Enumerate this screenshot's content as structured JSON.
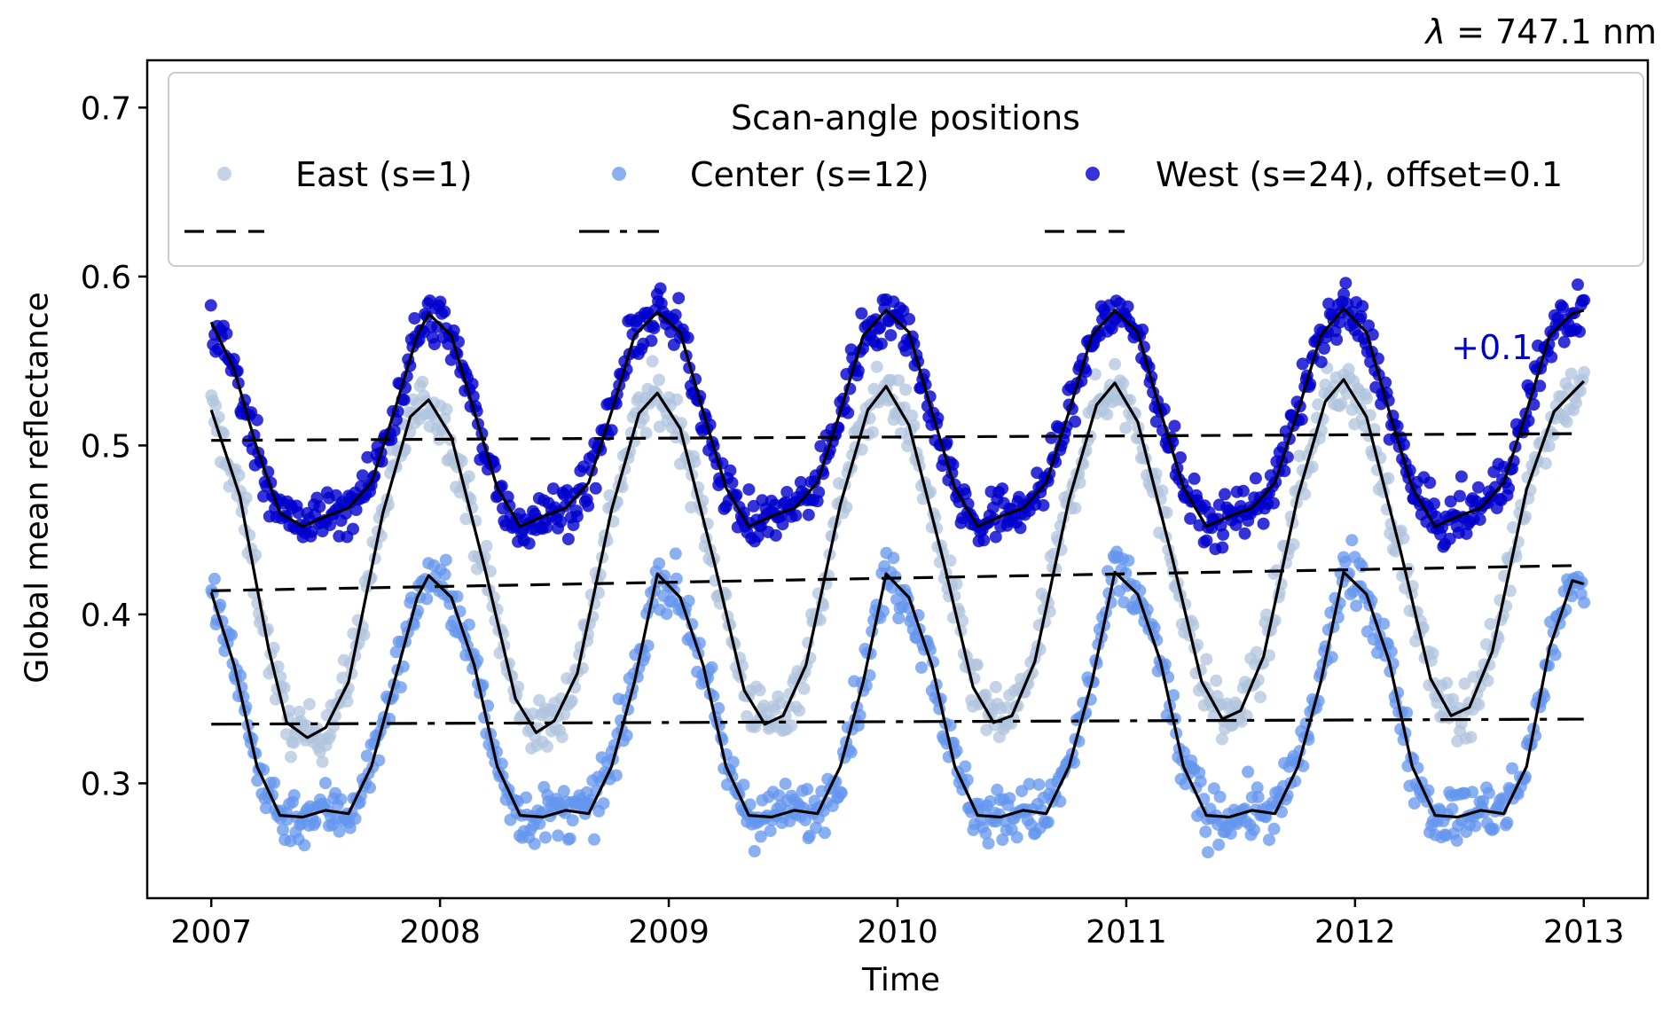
{
  "chart_data": {
    "type": "scatter",
    "title": "",
    "corner_label": {
      "symbol": "λ",
      "text": " = 747.1 nm"
    },
    "xlabel": "Time",
    "ylabel": "Global mean reflectance",
    "xlim": [
      2006.72,
      2013.28
    ],
    "ylim": [
      0.232,
      0.728
    ],
    "x_ticks": [
      2007,
      2008,
      2009,
      2010,
      2011,
      2012,
      2013
    ],
    "x_tick_labels": [
      "2007",
      "2008",
      "2009",
      "2010",
      "2011",
      "2012",
      "2013"
    ],
    "y_ticks": [
      0.3,
      0.4,
      0.5,
      0.6,
      0.7
    ],
    "y_tick_labels": [
      "0.3",
      "0.4",
      "0.5",
      "0.6",
      "0.7"
    ],
    "grid": false,
    "legend": {
      "title": "Scan-angle positions",
      "placement": "top",
      "entries": [
        "East (s=1)",
        "Center (s=12)",
        "West (s=24), offset=0.1"
      ]
    },
    "annotation": {
      "text": "+0.1",
      "x": 2012.42,
      "y": 0.551,
      "color": "#0000cc"
    },
    "colors": {
      "east": "#b0c4de",
      "center": "#6495ed",
      "west": "#0000cd",
      "fit": "#000000"
    },
    "series": [
      {
        "name": "East (s=1)",
        "kind": "scatter",
        "color": "#b0c4de",
        "fit_curve": {
          "x": [
            2007.0,
            2007.125,
            2007.25,
            2007.33,
            2007.42,
            2007.5,
            2007.6,
            2007.75,
            2007.87,
            2007.95,
            2008.05,
            2008.2,
            2008.33,
            2008.42,
            2008.5,
            2008.6,
            2008.75,
            2008.87,
            2008.95,
            2009.05,
            2009.2,
            2009.33,
            2009.42,
            2009.5,
            2009.6,
            2009.75,
            2009.87,
            2009.95,
            2010.05,
            2010.2,
            2010.33,
            2010.42,
            2010.5,
            2010.6,
            2010.75,
            2010.87,
            2010.95,
            2011.05,
            2011.2,
            2011.33,
            2011.42,
            2011.5,
            2011.6,
            2011.75,
            2011.87,
            2011.95,
            2012.05,
            2012.2,
            2012.33,
            2012.42,
            2012.5,
            2012.6,
            2012.75,
            2012.87,
            2013.0
          ],
          "y": [
            0.521,
            0.47,
            0.38,
            0.336,
            0.327,
            0.333,
            0.36,
            0.46,
            0.517,
            0.527,
            0.505,
            0.425,
            0.35,
            0.33,
            0.337,
            0.365,
            0.462,
            0.519,
            0.531,
            0.51,
            0.43,
            0.355,
            0.335,
            0.34,
            0.37,
            0.465,
            0.521,
            0.535,
            0.512,
            0.432,
            0.357,
            0.336,
            0.34,
            0.372,
            0.468,
            0.524,
            0.537,
            0.514,
            0.434,
            0.36,
            0.338,
            0.343,
            0.375,
            0.47,
            0.526,
            0.539,
            0.517,
            0.437,
            0.362,
            0.34,
            0.345,
            0.378,
            0.474,
            0.52,
            0.538
          ]
        },
        "trend": {
          "style": "dashed",
          "x": [
            2007.0,
            2013.0
          ],
          "y": [
            0.414,
            0.429
          ]
        }
      },
      {
        "name": "Center (s=12)",
        "kind": "scatter",
        "color": "#6495ed",
        "fit_curve": {
          "x": [
            2007.0,
            2007.1,
            2007.2,
            2007.3,
            2007.4,
            2007.5,
            2007.6,
            2007.7,
            2007.8,
            2007.9,
            2007.95,
            2008.05,
            2008.15,
            2008.25,
            2008.35,
            2008.45,
            2008.55,
            2008.65,
            2008.75,
            2008.85,
            2008.95,
            2009.05,
            2009.15,
            2009.25,
            2009.35,
            2009.45,
            2009.55,
            2009.65,
            2009.75,
            2009.85,
            2009.95,
            2010.05,
            2010.15,
            2010.25,
            2010.35,
            2010.45,
            2010.55,
            2010.65,
            2010.75,
            2010.85,
            2010.95,
            2011.05,
            2011.15,
            2011.25,
            2011.35,
            2011.45,
            2011.55,
            2011.65,
            2011.75,
            2011.85,
            2011.95,
            2012.05,
            2012.15,
            2012.25,
            2012.35,
            2012.45,
            2012.55,
            2012.65,
            2012.75,
            2012.85,
            2012.95,
            2013.0
          ],
          "y": [
            0.413,
            0.37,
            0.31,
            0.281,
            0.28,
            0.284,
            0.282,
            0.31,
            0.36,
            0.41,
            0.423,
            0.41,
            0.37,
            0.31,
            0.281,
            0.28,
            0.284,
            0.282,
            0.31,
            0.36,
            0.424,
            0.41,
            0.37,
            0.31,
            0.281,
            0.28,
            0.284,
            0.282,
            0.31,
            0.36,
            0.424,
            0.41,
            0.37,
            0.31,
            0.281,
            0.28,
            0.284,
            0.282,
            0.31,
            0.36,
            0.425,
            0.412,
            0.372,
            0.31,
            0.281,
            0.28,
            0.284,
            0.282,
            0.31,
            0.36,
            0.425,
            0.412,
            0.372,
            0.31,
            0.281,
            0.28,
            0.284,
            0.282,
            0.31,
            0.38,
            0.42,
            0.418
          ]
        },
        "trend": {
          "style": "dashdot",
          "x": [
            2007.0,
            2013.0
          ],
          "y": [
            0.335,
            0.338
          ]
        }
      },
      {
        "name": "West (s=24), offset=0.1",
        "kind": "scatter",
        "color": "#0000cd",
        "fit_curve": {
          "x": [
            2007.0,
            2007.1,
            2007.2,
            2007.3,
            2007.4,
            2007.5,
            2007.6,
            2007.7,
            2007.8,
            2007.9,
            2007.95,
            2008.05,
            2008.15,
            2008.25,
            2008.35,
            2008.45,
            2008.55,
            2008.65,
            2008.75,
            2008.85,
            2008.95,
            2009.05,
            2009.15,
            2009.25,
            2009.35,
            2009.45,
            2009.55,
            2009.65,
            2009.75,
            2009.85,
            2009.95,
            2010.05,
            2010.15,
            2010.25,
            2010.35,
            2010.45,
            2010.55,
            2010.65,
            2010.75,
            2010.85,
            2010.95,
            2011.05,
            2011.15,
            2011.25,
            2011.35,
            2011.45,
            2011.55,
            2011.65,
            2011.75,
            2011.85,
            2011.95,
            2012.05,
            2012.15,
            2012.25,
            2012.35,
            2012.45,
            2012.55,
            2012.65,
            2012.75,
            2012.85,
            2012.95,
            2013.0
          ],
          "y": [
            0.573,
            0.545,
            0.498,
            0.46,
            0.452,
            0.458,
            0.463,
            0.478,
            0.52,
            0.565,
            0.578,
            0.565,
            0.52,
            0.475,
            0.452,
            0.458,
            0.463,
            0.478,
            0.52,
            0.565,
            0.579,
            0.567,
            0.52,
            0.475,
            0.452,
            0.458,
            0.463,
            0.478,
            0.52,
            0.565,
            0.58,
            0.567,
            0.52,
            0.475,
            0.452,
            0.458,
            0.463,
            0.478,
            0.52,
            0.565,
            0.58,
            0.567,
            0.52,
            0.475,
            0.452,
            0.458,
            0.463,
            0.478,
            0.52,
            0.565,
            0.581,
            0.567,
            0.52,
            0.475,
            0.452,
            0.458,
            0.463,
            0.478,
            0.52,
            0.565,
            0.578,
            0.58
          ]
        },
        "trend": {
          "style": "dashed",
          "x": [
            2007.0,
            2013.0
          ],
          "y": [
            0.503,
            0.507
          ]
        }
      }
    ]
  }
}
